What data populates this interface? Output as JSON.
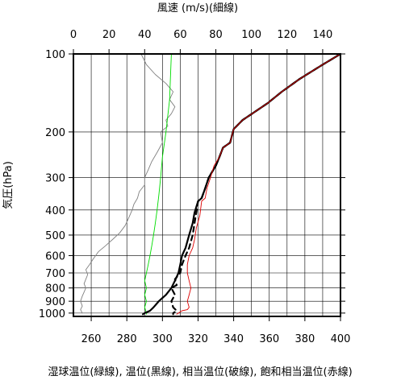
{
  "chart_data": {
    "type": "line",
    "title": "",
    "top_axis": {
      "label": "風速 (m/s)(細線)",
      "ticks": [
        0,
        20,
        40,
        60,
        80,
        100,
        120,
        140
      ],
      "range": [
        0,
        150
      ]
    },
    "bottom_axis": {
      "label": "湿球温位(緑線), 温位(黒線), 相当温位(破線), 飽和相当温位(赤線)",
      "ticks": [
        260,
        280,
        300,
        320,
        340,
        360,
        380,
        400
      ],
      "range": [
        250,
        400
      ]
    },
    "y_axis": {
      "label": "気圧(hPa)",
      "scale": "log",
      "inverted": true,
      "ticks": [
        100,
        200,
        300,
        400,
        500,
        600,
        700,
        800,
        900,
        1000
      ],
      "range": [
        100,
        1030
      ]
    },
    "grid": true,
    "series": [
      {
        "id": "wind_speed",
        "name": "風速",
        "axis": "top",
        "color": "#808080",
        "style": "thin",
        "points": [
          [
            38,
            100
          ],
          [
            41,
            110
          ],
          [
            46,
            120
          ],
          [
            52,
            130
          ],
          [
            56,
            140
          ],
          [
            54,
            150
          ],
          [
            57,
            160
          ],
          [
            55,
            170
          ],
          [
            52,
            180
          ],
          [
            53,
            190
          ],
          [
            49,
            200
          ],
          [
            50,
            220
          ],
          [
            47,
            240
          ],
          [
            44,
            260
          ],
          [
            42,
            280
          ],
          [
            40,
            300
          ],
          [
            40,
            320
          ],
          [
            37,
            340
          ],
          [
            36,
            360
          ],
          [
            34,
            380
          ],
          [
            33,
            400
          ],
          [
            31,
            430
          ],
          [
            29,
            460
          ],
          [
            26,
            490
          ],
          [
            22,
            520
          ],
          [
            18,
            550
          ],
          [
            14,
            580
          ],
          [
            11,
            620
          ],
          [
            9,
            650
          ],
          [
            7,
            680
          ],
          [
            8,
            710
          ],
          [
            7,
            740
          ],
          [
            6,
            770
          ],
          [
            7,
            800
          ],
          [
            6,
            830
          ],
          [
            5,
            860
          ],
          [
            4,
            900
          ],
          [
            5,
            940
          ],
          [
            4,
            970
          ],
          [
            5,
            1000
          ]
        ]
      },
      {
        "id": "wet_bulb_theta",
        "name": "湿球温位",
        "axis": "bottom",
        "color": "#00dd00",
        "style": "thin",
        "points": [
          [
            305,
            100
          ],
          [
            304,
            150
          ],
          [
            302,
            200
          ],
          [
            300,
            250
          ],
          [
            299,
            300
          ],
          [
            298,
            350
          ],
          [
            297,
            400
          ],
          [
            296,
            450
          ],
          [
            295,
            500
          ],
          [
            294,
            550
          ],
          [
            293,
            600
          ],
          [
            292,
            650
          ],
          [
            291,
            700
          ],
          [
            290,
            750
          ],
          [
            291,
            800
          ],
          [
            290,
            850
          ],
          [
            291,
            900
          ],
          [
            290,
            950
          ],
          [
            291,
            1000
          ],
          [
            291,
            1010
          ]
        ]
      },
      {
        "id": "theta",
        "name": "温位",
        "axis": "bottom",
        "color": "#000000",
        "style": "thick",
        "points": [
          [
            400,
            100
          ],
          [
            390,
            110
          ],
          [
            377,
            125
          ],
          [
            367,
            140
          ],
          [
            359,
            155
          ],
          [
            345,
            180
          ],
          [
            340,
            195
          ],
          [
            338,
            220
          ],
          [
            334,
            230
          ],
          [
            332,
            250
          ],
          [
            330,
            270
          ],
          [
            326,
            300
          ],
          [
            324,
            330
          ],
          [
            322,
            360
          ],
          [
            320,
            370
          ],
          [
            318,
            410
          ],
          [
            317,
            450
          ],
          [
            315,
            500
          ],
          [
            313,
            560
          ],
          [
            311,
            600
          ],
          [
            310,
            650
          ],
          [
            309,
            700
          ],
          [
            307,
            750
          ],
          [
            305,
            800
          ],
          [
            302,
            850
          ],
          [
            298,
            900
          ],
          [
            295,
            950
          ],
          [
            293,
            980
          ],
          [
            290,
            1000
          ],
          [
            289,
            1010
          ]
        ]
      },
      {
        "id": "equivalent_theta",
        "name": "相当温位",
        "axis": "bottom",
        "color": "#000000",
        "style": "dashed",
        "points": [
          [
            400,
            100
          ],
          [
            390,
            110
          ],
          [
            377,
            125
          ],
          [
            367,
            140
          ],
          [
            359,
            155
          ],
          [
            345,
            180
          ],
          [
            340,
            195
          ],
          [
            338,
            220
          ],
          [
            334,
            230
          ],
          [
            332,
            250
          ],
          [
            330,
            270
          ],
          [
            326,
            300
          ],
          [
            324,
            330
          ],
          [
            322,
            360
          ],
          [
            320,
            370
          ],
          [
            319,
            410
          ],
          [
            318,
            450
          ],
          [
            317,
            500
          ],
          [
            315,
            560
          ],
          [
            313,
            600
          ],
          [
            311,
            650
          ],
          [
            310,
            700
          ],
          [
            307,
            740
          ],
          [
            308,
            780
          ],
          [
            305,
            800
          ],
          [
            307,
            850
          ],
          [
            305,
            900
          ],
          [
            306,
            950
          ],
          [
            308,
            980
          ],
          [
            306,
            1000
          ],
          [
            306,
            1010
          ]
        ]
      },
      {
        "id": "saturated_equivalent_theta",
        "name": "飽和相当温位",
        "axis": "bottom",
        "color": "#dd0000",
        "style": "thin",
        "points": [
          [
            400,
            100
          ],
          [
            390,
            110
          ],
          [
            377,
            125
          ],
          [
            367,
            140
          ],
          [
            359,
            155
          ],
          [
            345,
            180
          ],
          [
            340,
            195
          ],
          [
            338,
            220
          ],
          [
            334,
            230
          ],
          [
            332,
            250
          ],
          [
            329,
            270
          ],
          [
            327,
            300
          ],
          [
            325,
            330
          ],
          [
            324,
            360
          ],
          [
            322,
            370
          ],
          [
            321,
            420
          ],
          [
            319,
            470
          ],
          [
            318,
            520
          ],
          [
            317,
            560
          ],
          [
            315,
            600
          ],
          [
            314,
            650
          ],
          [
            314,
            700
          ],
          [
            315,
            750
          ],
          [
            316,
            800
          ],
          [
            315,
            850
          ],
          [
            314,
            900
          ],
          [
            315,
            950
          ],
          [
            314,
            970
          ],
          [
            311,
            980
          ],
          [
            309,
            1000
          ],
          [
            308,
            1010
          ]
        ]
      }
    ]
  }
}
